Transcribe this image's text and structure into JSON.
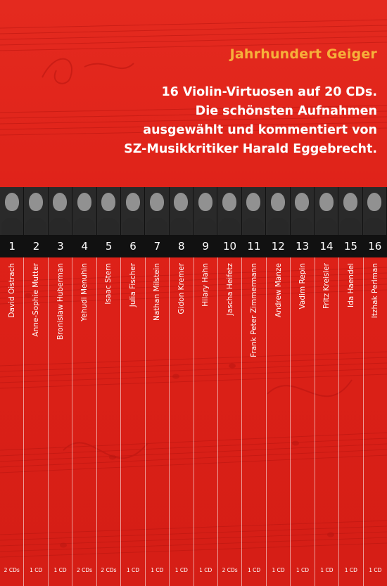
{
  "series_title": "Jahrhundert Geiger",
  "headline": [
    "16 Violin-Virtuosen auf 20 CDs.",
    "Die schönsten Aufnahmen",
    "ausgewählt und kommentiert von",
    "SZ-Musikkritiker Harald Eggebrecht."
  ],
  "volumes": [
    {
      "number": "1",
      "name": "David Oistrach",
      "cds": "2 CDs"
    },
    {
      "number": "2",
      "name": "Anne-Sophie Mutter",
      "cds": "1 CD"
    },
    {
      "number": "3",
      "name": "Bronislaw Huberman",
      "cds": "1 CD"
    },
    {
      "number": "4",
      "name": "Yehudi Menuhin",
      "cds": "2 CDs"
    },
    {
      "number": "5",
      "name": "Isaac Stern",
      "cds": "2 CDs"
    },
    {
      "number": "6",
      "name": "Julia Fischer",
      "cds": "1 CD"
    },
    {
      "number": "7",
      "name": "Nathan Milstein",
      "cds": "1 CD"
    },
    {
      "number": "8",
      "name": "Gidon Kremer",
      "cds": "1 CD"
    },
    {
      "number": "9",
      "name": "Hilary Hahn",
      "cds": "1 CD"
    },
    {
      "number": "10",
      "name": "Jascha Heifetz",
      "cds": "2 CDs"
    },
    {
      "number": "11",
      "name": "Frank Peter Zimmermann",
      "cds": "1 CD"
    },
    {
      "number": "12",
      "name": "Andrew Manze",
      "cds": "1 CD"
    },
    {
      "number": "13",
      "name": "Vadim Repin",
      "cds": "1 CD"
    },
    {
      "number": "14",
      "name": "Fritz Kreisler",
      "cds": "1 CD"
    },
    {
      "number": "15",
      "name": "Ida Haendel",
      "cds": "1 CD"
    },
    {
      "number": "16",
      "name": "Itzhak Perlman",
      "cds": "1 CD"
    }
  ],
  "colors": {
    "background": "#e2231a",
    "series_title": "#f6b13a",
    "numbers_band": "#111111"
  }
}
